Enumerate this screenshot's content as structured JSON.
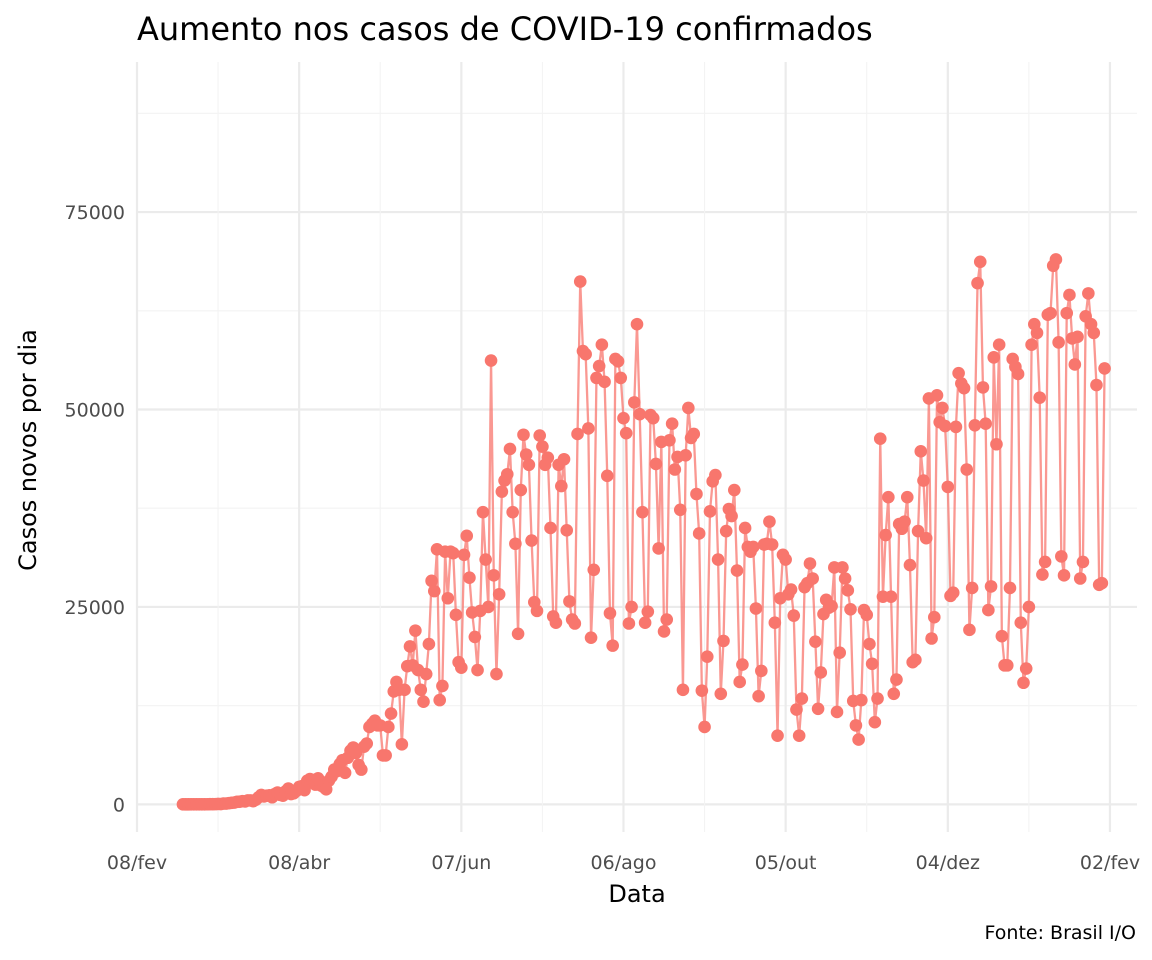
{
  "chart_data": {
    "type": "line",
    "title": "Aumento nos casos de COVID-19 confirmados",
    "xlabel": "Data",
    "ylabel": "Casos novos por dia",
    "caption": "Fonte: Brasil I/O",
    "x_start": "2020-02-25",
    "x_interval_days": 1,
    "xlim": [
      "2020-02-08",
      "2021-02-12"
    ],
    "ylim": [
      -3500,
      94000
    ],
    "x_ticks": [
      {
        "date": "2020-02-08",
        "label": "08/fev"
      },
      {
        "date": "2020-04-08",
        "label": "08/abr"
      },
      {
        "date": "2020-06-07",
        "label": "07/jun"
      },
      {
        "date": "2020-08-06",
        "label": "06/ago"
      },
      {
        "date": "2020-10-05",
        "label": "05/out"
      },
      {
        "date": "2020-12-04",
        "label": "04/dez"
      },
      {
        "date": "2021-02-02",
        "label": "02/fev"
      }
    ],
    "y_ticks": [
      0,
      25000,
      50000,
      75000
    ],
    "grid": true,
    "legend": "none",
    "series": [
      {
        "color": "#f8766d",
        "values": [
          1,
          0,
          0,
          1,
          1,
          2,
          4,
          5,
          11,
          13,
          25,
          21,
          30,
          50,
          40,
          100,
          98,
          153,
          200,
          228,
          321,
          344,
          400,
          367,
          502,
          500,
          405,
          600,
          900,
          1200,
          1000,
          1100,
          1150,
          900,
          1300,
          1500,
          1200,
          1100,
          1650,
          2000,
          1300,
          1400,
          1700,
          2200,
          2300,
          1800,
          3000,
          3200,
          3100,
          2500,
          3300,
          2400,
          2200,
          1900,
          3000,
          3500,
          4400,
          4200,
          5100,
          5600,
          4000,
          5900,
          6800,
          7200,
          6500,
          5000,
          4400,
          7300,
          7700,
          9800,
          10200,
          10600,
          10000,
          10000,
          6200,
          6200,
          9800,
          11500,
          14300,
          15500,
          14500,
          7600,
          14500,
          17500,
          20000,
          17600,
          22000,
          17000,
          14500,
          13000,
          16500,
          20300,
          28300,
          27000,
          32300,
          13200,
          15000,
          32000,
          26100,
          32000,
          31800,
          24000,
          18000,
          17300,
          31600,
          34000,
          28700,
          24300,
          21200,
          17000,
          24500,
          37000,
          31000,
          25000,
          56200,
          29000,
          16500,
          26600,
          39600,
          41000,
          41800,
          45000,
          37000,
          33000,
          21600,
          39800,
          46800,
          44300,
          43000,
          33400,
          25600,
          24500,
          46700,
          45300,
          43000,
          43900,
          35000,
          23800,
          23000,
          43000,
          40300,
          43700,
          34700,
          25700,
          23400,
          22900,
          46900,
          66200,
          57400,
          57000,
          47600,
          21100,
          29700,
          54000,
          55500,
          58200,
          53500,
          41600,
          24200,
          20100,
          56400,
          56100,
          54000,
          48900,
          47000,
          22900,
          25000,
          50900,
          60800,
          49400,
          37000,
          23000,
          24400,
          49300,
          48900,
          43100,
          32400,
          45900,
          21900,
          23400,
          46100,
          48200,
          42400,
          44000,
          37300,
          14500,
          44200,
          50200,
          46400,
          46900,
          39300,
          34300,
          14400,
          9800,
          18700,
          37100,
          40900,
          41700,
          31000,
          14000,
          20700,
          34600,
          37400,
          36500,
          39800,
          29600,
          15500,
          17700,
          35000,
          32600,
          32000,
          32600,
          24800,
          13700,
          16900,
          32900,
          33000,
          35800,
          32900,
          23000,
          8700,
          26100,
          31600,
          31000,
          26600,
          27200,
          23900,
          12000,
          8700,
          13400,
          27500,
          28000,
          30500,
          28600,
          20600,
          12100,
          16700,
          24100,
          25900,
          24900,
          25100,
          30000,
          11700,
          19200,
          30000,
          28600,
          27100,
          24700,
          13100,
          10000,
          8200,
          13200,
          24600,
          24000,
          20300,
          17800,
          10400,
          13400,
          46300,
          26300,
          34100,
          38900,
          26300,
          14000,
          15800,
          35500,
          34900,
          35800,
          38900,
          30300,
          18000,
          18300,
          34600,
          44700,
          41000,
          33700,
          51400,
          21000,
          23700,
          51800,
          48400,
          50200,
          47900,
          40200,
          26400,
          26800,
          47800,
          54600,
          53300,
          52700,
          42400,
          22100,
          27400,
          48000,
          66000,
          68700,
          52800,
          48200,
          24600,
          27600,
          56600,
          45600,
          58200,
          21300,
          17600,
          17600,
          27400,
          56400,
          55400,
          54500,
          23000,
          15400,
          17200,
          25000,
          58200,
          60800,
          59700,
          51500,
          29100,
          30700,
          62000,
          62200,
          68200,
          69000,
          58500,
          31400,
          29000,
          62200,
          64500,
          59000,
          55700,
          59200,
          28600,
          30700,
          61800,
          64700,
          60800,
          59700,
          53100,
          27800,
          28000,
          55200
        ]
      }
    ]
  }
}
